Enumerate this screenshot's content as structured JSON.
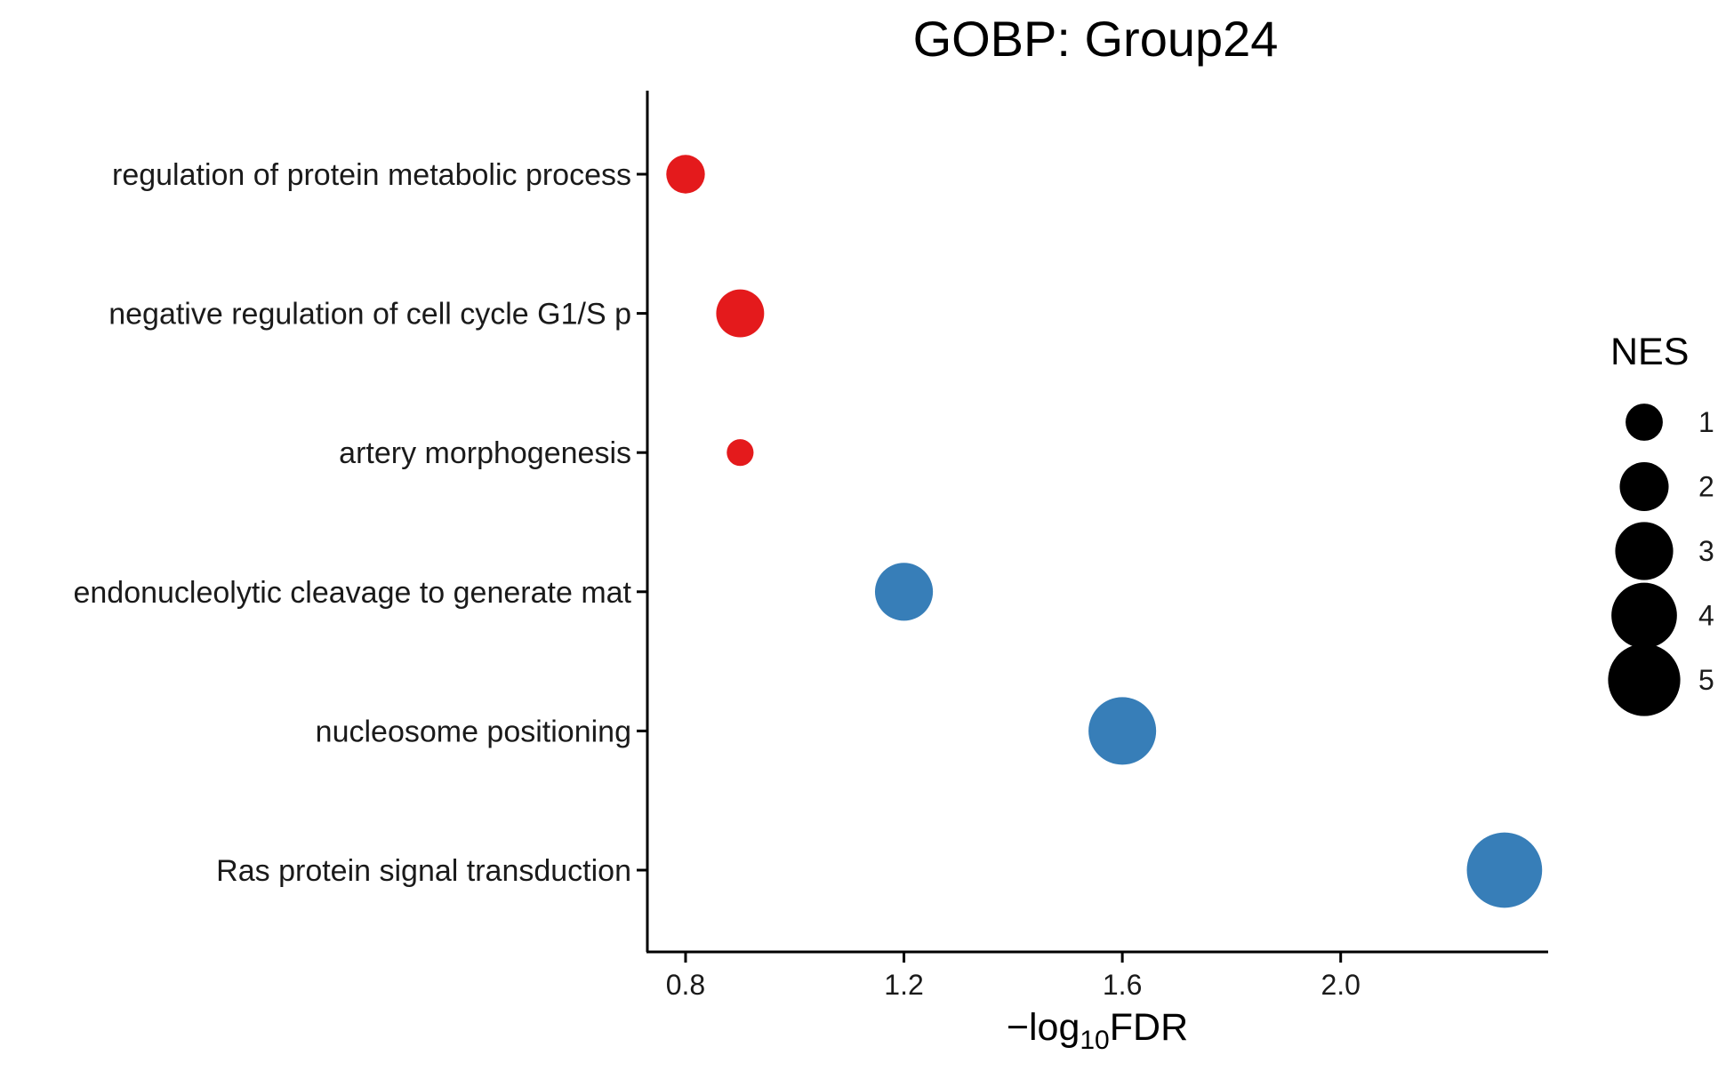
{
  "chart_data": {
    "type": "scatter",
    "title": "GOBP: Group24",
    "xlabel": {
      "prefix": "−log",
      "subscript": "10",
      "suffix": "FDR"
    },
    "ylabel": "",
    "xlim": [
      0.73,
      2.38
    ],
    "x_ticks": [
      "0.8",
      "1.2",
      "1.6",
      "2.0"
    ],
    "x_tick_values": [
      0.8,
      1.2,
      1.6,
      2.0
    ],
    "grid": false,
    "categories": [
      "regulation of protein metabolic process",
      "negative regulation of cell cycle G1/S p",
      "artery morphogenesis",
      "endonucleolytic cleavage to generate mat",
      "nucleosome positioning",
      "Ras protein signal transduction"
    ],
    "points": [
      {
        "term": "regulation of protein metabolic process",
        "x": 0.8,
        "nes": 1.1,
        "color": "#E41A1C"
      },
      {
        "term": "negative regulation of cell cycle G1/S p",
        "x": 0.9,
        "nes": 1.9,
        "color": "#E41A1C"
      },
      {
        "term": "artery morphogenesis",
        "x": 0.9,
        "nes": 0.4,
        "color": "#E41A1C"
      },
      {
        "term": "endonucleolytic cleavage to generate mat",
        "x": 1.2,
        "nes": 3.0,
        "color": "#377EB8"
      },
      {
        "term": "nucleosome positioning",
        "x": 1.6,
        "nes": 4.3,
        "color": "#377EB8"
      },
      {
        "term": "Ras protein signal transduction",
        "x": 2.3,
        "nes": 5.5,
        "color": "#377EB8"
      }
    ],
    "legend": {
      "title": "NES",
      "placement": "right",
      "entries": [
        {
          "label": "1",
          "value": 1
        },
        {
          "label": "2",
          "value": 2
        },
        {
          "label": "3",
          "value": 3
        },
        {
          "label": "4",
          "value": 4
        },
        {
          "label": "5",
          "value": 5
        }
      ]
    }
  }
}
